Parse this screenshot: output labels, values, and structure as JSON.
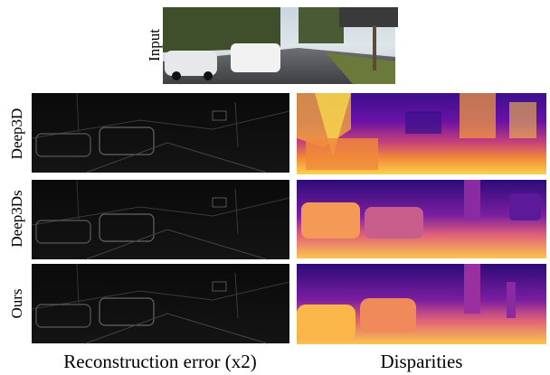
{
  "input": {
    "label": "Input"
  },
  "rows": [
    {
      "label": "Deep3D"
    },
    {
      "label": "Deep3Ds"
    },
    {
      "label": "Ours"
    }
  ],
  "captions": [
    "Reconstruction error (x2)",
    "Disparities"
  ]
}
